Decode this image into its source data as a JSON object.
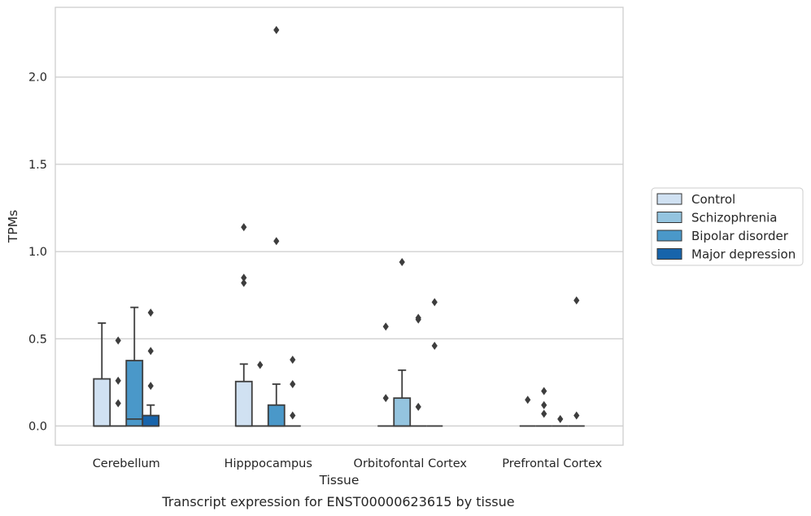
{
  "chart_data": {
    "type": "box",
    "title": "Transcript expression for ENST00000623615 by tissue",
    "xlabel": "Tissue",
    "ylabel": "TPMs",
    "ylim": [
      -0.11,
      2.4
    ],
    "yticks": [
      0.0,
      0.5,
      1.0,
      1.5,
      2.0
    ],
    "ytick_labels": [
      "0.0",
      "0.5",
      "1.0",
      "1.5",
      "2.0"
    ],
    "grid": "horizontal",
    "legend_position": "right",
    "categories": [
      "Cerebellum",
      "Hipppocampus",
      "Orbitofontal Cortex",
      "Prefrontal Cortex"
    ],
    "series": [
      {
        "name": "Control",
        "color": "#d0e1f2",
        "boxes": [
          {
            "q1": 0.0,
            "median": 0.0,
            "q3": 0.27,
            "whisker_low": 0.0,
            "whisker_high": 0.59,
            "outliers": []
          },
          {
            "q1": 0.0,
            "median": 0.0,
            "q3": 0.255,
            "whisker_low": 0.0,
            "whisker_high": 0.355,
            "outliers": [
              0.82,
              0.85,
              1.14
            ]
          },
          {
            "q1": 0.0,
            "median": 0.0,
            "q3": 0.0,
            "whisker_low": 0.0,
            "whisker_high": 0.0,
            "outliers": [
              0.16,
              0.57
            ]
          },
          {
            "q1": 0.0,
            "median": 0.0,
            "q3": 0.0,
            "whisker_low": 0.0,
            "whisker_high": 0.0,
            "outliers": [
              0.15
            ]
          }
        ]
      },
      {
        "name": "Schizophrenia",
        "color": "#94c4df",
        "boxes": [
          {
            "q1": 0.0,
            "median": 0.0,
            "q3": 0.0,
            "whisker_low": 0.0,
            "whisker_high": 0.0,
            "outliers": [
              0.13,
              0.26,
              0.49
            ]
          },
          {
            "q1": 0.0,
            "median": 0.0,
            "q3": 0.0,
            "whisker_low": 0.0,
            "whisker_high": 0.0,
            "outliers": [
              0.35
            ]
          },
          {
            "q1": 0.0,
            "median": 0.0,
            "q3": 0.16,
            "whisker_low": 0.0,
            "whisker_high": 0.32,
            "outliers": [
              0.94
            ]
          },
          {
            "q1": 0.0,
            "median": 0.0,
            "q3": 0.0,
            "whisker_low": 0.0,
            "whisker_high": 0.0,
            "outliers": [
              0.07,
              0.12,
              0.2
            ]
          }
        ]
      },
      {
        "name": "Bipolar disorder",
        "color": "#4a98c9",
        "boxes": [
          {
            "q1": 0.0,
            "median": 0.04,
            "q3": 0.375,
            "whisker_low": 0.0,
            "whisker_high": 0.68,
            "outliers": []
          },
          {
            "q1": 0.0,
            "median": 0.0,
            "q3": 0.12,
            "whisker_low": 0.0,
            "whisker_high": 0.24,
            "outliers": [
              1.06,
              2.27
            ]
          },
          {
            "q1": 0.0,
            "median": 0.0,
            "q3": 0.0,
            "whisker_low": 0.0,
            "whisker_high": 0.0,
            "outliers": [
              0.11,
              0.61,
              0.62
            ]
          },
          {
            "q1": 0.0,
            "median": 0.0,
            "q3": 0.0,
            "whisker_low": 0.0,
            "whisker_high": 0.0,
            "outliers": [
              0.04
            ]
          }
        ]
      },
      {
        "name": "Major depression",
        "color": "#1764ab",
        "boxes": [
          {
            "q1": 0.0,
            "median": 0.0,
            "q3": 0.06,
            "whisker_low": 0.0,
            "whisker_high": 0.12,
            "outliers": [
              0.23,
              0.43,
              0.65
            ]
          },
          {
            "q1": 0.0,
            "median": 0.0,
            "q3": 0.0,
            "whisker_low": 0.0,
            "whisker_high": 0.0,
            "outliers": [
              0.06,
              0.24,
              0.38
            ]
          },
          {
            "q1": 0.0,
            "median": 0.0,
            "q3": 0.0,
            "whisker_low": 0.0,
            "whisker_high": 0.0,
            "outliers": [
              0.46,
              0.71
            ]
          },
          {
            "q1": 0.0,
            "median": 0.0,
            "q3": 0.0,
            "whisker_low": 0.0,
            "whisker_high": 0.0,
            "outliers": [
              0.06,
              0.72
            ]
          }
        ]
      }
    ]
  }
}
